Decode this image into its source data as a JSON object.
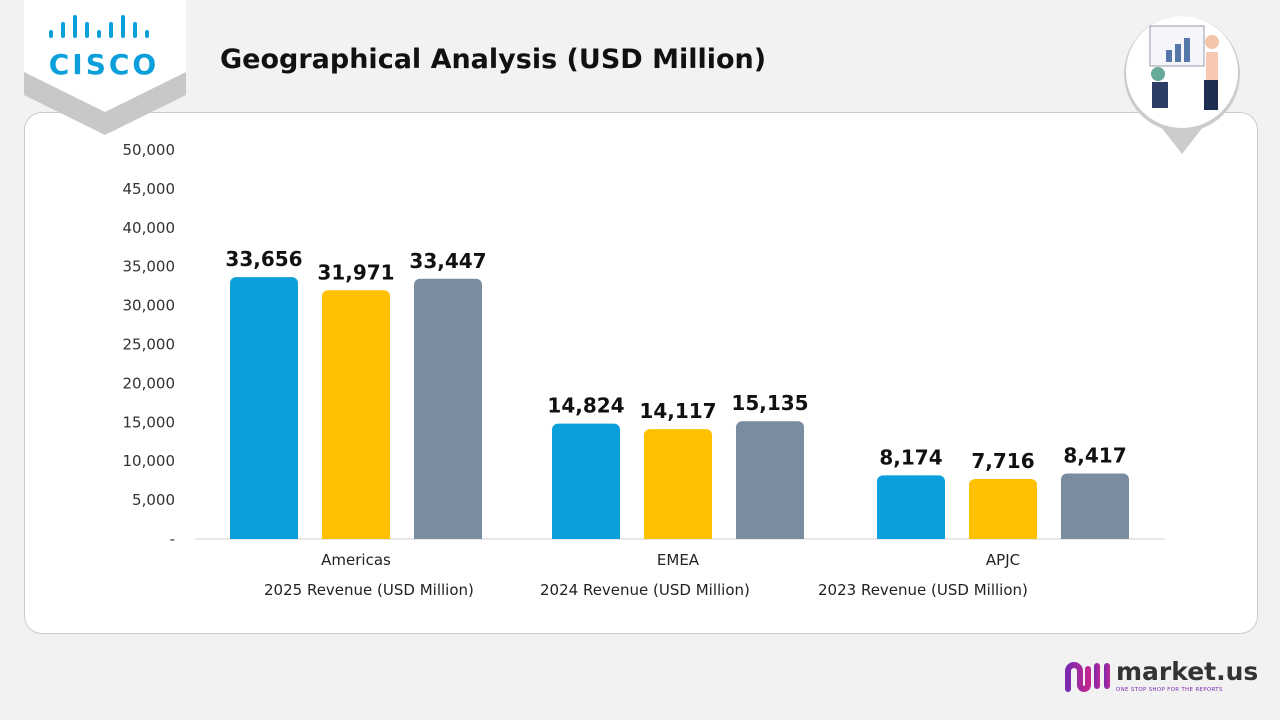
{
  "header": {
    "title": "Geographical Analysis (USD Million)",
    "logo_text": "CISCO",
    "brand_text": "market.us",
    "brand_tagline": "ONE STOP SHOP FOR THE REPORTS"
  },
  "chart_data": {
    "type": "bar",
    "title": "Geographical Analysis (USD Million)",
    "categories": [
      "Americas",
      "EMEA",
      "APJC"
    ],
    "series": [
      {
        "name": "2025 Revenue (USD Million)",
        "values": [
          33656,
          14824,
          8174
        ],
        "color": "#0BA0DB"
      },
      {
        "name": "2024 Revenue (USD Million)",
        "values": [
          31971,
          14117,
          7716
        ],
        "color": "#FFC000"
      },
      {
        "name": "2023 Revenue (USD Million)",
        "values": [
          33447,
          15135,
          8417
        ],
        "color": "#7A8CA0"
      }
    ],
    "data_labels": [
      [
        "33,656",
        "14,824",
        "8,174"
      ],
      [
        "31,971",
        "14,117",
        "7,716"
      ],
      [
        "33,447",
        "15,135",
        "8,417"
      ]
    ],
    "yticks": [
      "-",
      "5,000",
      "10,000",
      "15,000",
      "20,000",
      "25,000",
      "30,000",
      "35,000",
      "40,000",
      "45,000",
      "50,000"
    ],
    "ylim": [
      0,
      50000
    ],
    "grid": false,
    "legend_placement": "bottom"
  }
}
